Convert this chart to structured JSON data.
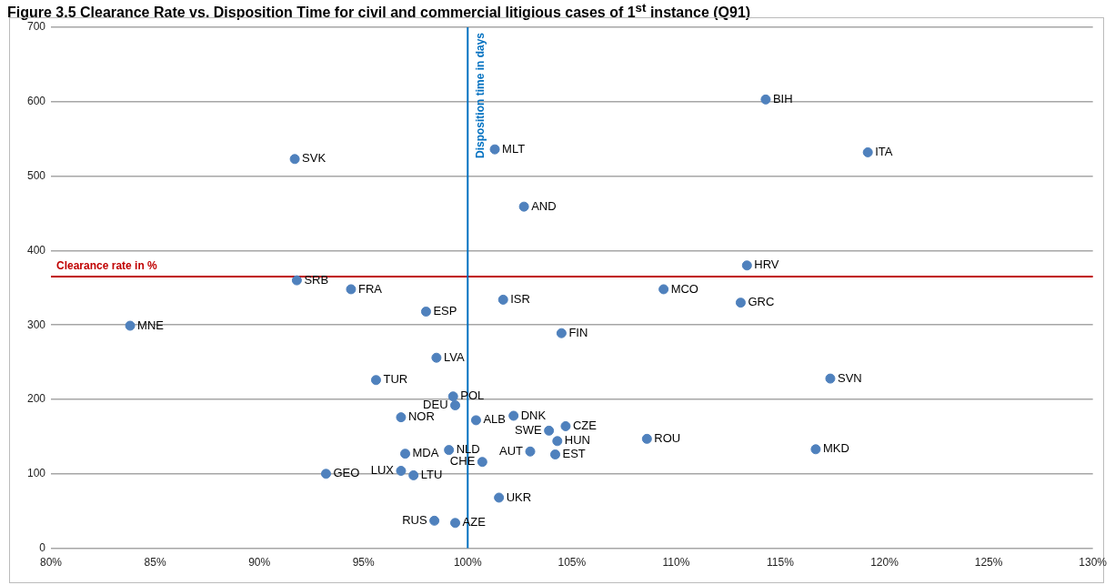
{
  "chart_data": {
    "type": "scatter",
    "title": "Figure 3.5 Clearance Rate vs. Disposition Time for civil and commercial litigious cases of 1$^{st}$ instance (Q91)",
    "xlim": [
      80,
      130
    ],
    "ylim": [
      0,
      700
    ],
    "xticks": [
      {
        "value": 80,
        "label": "80%"
      },
      {
        "value": 85,
        "label": "85%"
      },
      {
        "value": 90,
        "label": "90%"
      },
      {
        "value": 95,
        "label": "95%"
      },
      {
        "value": 100,
        "label": "100%"
      },
      {
        "value": 105,
        "label": "105%"
      },
      {
        "value": 110,
        "label": "110%"
      },
      {
        "value": 115,
        "label": "115%"
      },
      {
        "value": 120,
        "label": "120%"
      },
      {
        "value": 125,
        "label": "125%"
      },
      {
        "value": 130,
        "label": "130%"
      }
    ],
    "yticks": [
      0,
      100,
      200,
      300,
      400,
      500,
      600,
      700
    ],
    "grid": "y",
    "legend": false,
    "marker": "circle",
    "ref_lines": [
      {
        "axis": "y",
        "value": 365,
        "label": "Clearance rate in %",
        "color": "#c00000"
      },
      {
        "axis": "x",
        "value": 100,
        "label": "Disposition time in days",
        "color": "#0070c0"
      }
    ],
    "series": [
      {
        "name": "SVK",
        "color": "#4f81bd",
        "x": [
          91.7
        ],
        "values": [
          523
        ]
      },
      {
        "name": "SRB",
        "color": "#4f81bd",
        "x": [
          91.8
        ],
        "values": [
          360
        ]
      },
      {
        "name": "FRA",
        "color": "#4f81bd",
        "x": [
          94.4
        ],
        "values": [
          348
        ]
      },
      {
        "name": "MLT",
        "color": "#4f81bd",
        "x": [
          101.3
        ],
        "values": [
          536
        ]
      },
      {
        "name": "AND",
        "color": "#4f81bd",
        "x": [
          102.7
        ],
        "values": [
          459
        ]
      },
      {
        "name": "MCO",
        "color": "#4f81bd",
        "x": [
          109.4
        ],
        "values": [
          348
        ]
      },
      {
        "name": "HRV",
        "color": "#4f81bd",
        "x": [
          113.4
        ],
        "values": [
          380
        ]
      },
      {
        "name": "BIH",
        "color": "#4f81bd",
        "x": [
          114.3
        ],
        "values": [
          603
        ]
      },
      {
        "name": "ITA",
        "color": "#4f81bd",
        "x": [
          119.2
        ],
        "values": [
          532
        ]
      },
      {
        "name": "ISR",
        "color": "#4f81bd",
        "x": [
          101.7
        ],
        "values": [
          334
        ]
      },
      {
        "name": "ESP",
        "color": "#4f81bd",
        "x": [
          98.0
        ],
        "values": [
          318
        ]
      },
      {
        "name": "FIN",
        "color": "#4f81bd",
        "x": [
          104.5
        ],
        "values": [
          289
        ]
      },
      {
        "name": "LVA",
        "color": "#4f81bd",
        "x": [
          98.5
        ],
        "values": [
          256
        ]
      },
      {
        "name": "TUR",
        "color": "#4f81bd",
        "x": [
          95.6
        ],
        "values": [
          226
        ]
      },
      {
        "name": "POL",
        "color": "#4f81bd",
        "x": [
          99.3
        ],
        "values": [
          204
        ]
      },
      {
        "name": "DEU",
        "color": "#4f81bd",
        "x": [
          99.4
        ],
        "values": [
          192
        ]
      },
      {
        "name": "NOR",
        "color": "#4f81bd",
        "x": [
          96.8
        ],
        "values": [
          176
        ]
      },
      {
        "name": "ALB",
        "color": "#4f81bd",
        "x": [
          100.4
        ],
        "values": [
          172
        ]
      },
      {
        "name": "DNK",
        "color": "#4f81bd",
        "x": [
          102.2
        ],
        "values": [
          178
        ]
      },
      {
        "name": "CZE",
        "color": "#4f81bd",
        "x": [
          104.7
        ],
        "values": [
          164
        ]
      },
      {
        "name": "SWE",
        "color": "#4f81bd",
        "x": [
          103.9
        ],
        "values": [
          158
        ]
      },
      {
        "name": "HUN",
        "color": "#4f81bd",
        "x": [
          104.3
        ],
        "values": [
          144
        ]
      },
      {
        "name": "ROU",
        "color": "#4f81bd",
        "x": [
          108.6
        ],
        "values": [
          147
        ]
      },
      {
        "name": "MDA",
        "color": "#4f81bd",
        "x": [
          97.0
        ],
        "values": [
          127
        ]
      },
      {
        "name": "NLD",
        "color": "#4f81bd",
        "x": [
          99.1
        ],
        "values": [
          132
        ]
      },
      {
        "name": "AUT",
        "color": "#4f81bd",
        "x": [
          103.0
        ],
        "values": [
          130
        ]
      },
      {
        "name": "EST",
        "color": "#4f81bd",
        "x": [
          104.2
        ],
        "values": [
          126
        ]
      },
      {
        "name": "CHE",
        "color": "#4f81bd",
        "x": [
          100.7
        ],
        "values": [
          116
        ]
      },
      {
        "name": "LUX",
        "color": "#4f81bd",
        "x": [
          96.8
        ],
        "values": [
          104
        ]
      },
      {
        "name": "LTU",
        "color": "#4f81bd",
        "x": [
          97.4
        ],
        "values": [
          98
        ]
      },
      {
        "name": "UKR",
        "color": "#4f81bd",
        "x": [
          101.5
        ],
        "values": [
          68
        ]
      },
      {
        "name": "RUS",
        "color": "#4f81bd",
        "x": [
          98.4
        ],
        "values": [
          37
        ]
      },
      {
        "name": "AZE",
        "color": "#4f81bd",
        "x": [
          99.4
        ],
        "values": [
          34
        ]
      },
      {
        "name": "GEO",
        "color": "#4f81bd",
        "x": [
          93.2
        ],
        "values": [
          100
        ]
      },
      {
        "name": "MNE",
        "color": "#4f81bd",
        "x": [
          83.8
        ],
        "values": [
          299
        ]
      },
      {
        "name": "GRC",
        "color": "#4f81bd",
        "x": [
          113.1
        ],
        "values": [
          330
        ]
      },
      {
        "name": "SVN",
        "color": "#4f81bd",
        "x": [
          117.4
        ],
        "values": [
          228
        ]
      },
      {
        "name": "MKD",
        "color": "#4f81bd",
        "x": [
          116.7
        ],
        "values": [
          133
        ]
      }
    ]
  }
}
